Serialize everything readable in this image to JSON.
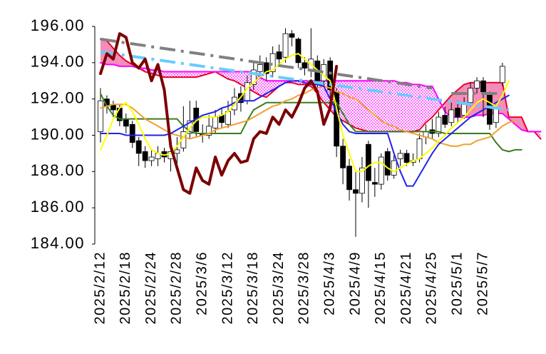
{
  "chart_data": {
    "type": "candlestick",
    "categories": [
      "2025/2/12",
      null,
      null,
      null,
      "2025/2/18",
      null,
      null,
      null,
      "2025/2/24",
      null,
      null,
      null,
      "2025/2/28",
      null,
      null,
      null,
      "2025/3/6",
      null,
      null,
      null,
      "2025/3/12",
      null,
      null,
      null,
      "2025/3/18",
      null,
      null,
      null,
      "2025/3/24",
      null,
      null,
      null,
      "2025/3/28",
      null,
      null,
      null,
      "2025/4/3",
      null,
      null,
      null,
      "2025/4/9",
      null,
      null,
      null,
      "2025/4/15",
      null,
      null,
      null,
      "2025/4/21",
      null,
      null,
      null,
      "2025/4/25",
      null,
      null,
      null,
      "2025/5/1",
      null,
      null,
      null,
      "2025/5/7",
      null,
      null,
      null,
      null,
      null,
      null,
      null,
      null,
      null
    ],
    "ylim": [
      184,
      196
    ],
    "yticks": [
      {
        "value": 184,
        "label": "184.00"
      },
      {
        "value": 186,
        "label": "186.00"
      },
      {
        "value": 188,
        "label": "188.00"
      },
      {
        "value": 190,
        "label": "190.00"
      },
      {
        "value": 192,
        "label": "192.00"
      },
      {
        "value": 194,
        "label": "194.00"
      },
      {
        "value": 196,
        "label": "196.00"
      }
    ],
    "grid": false,
    "candles": {
      "up_color": "#ffffff",
      "down_color": "#000000",
      "open": [
        190.2,
        192.0,
        191.7,
        191.5,
        190.9,
        190.6,
        189.7,
        189.1,
        188.6,
        188.7,
        189.1,
        188.7,
        189.0,
        189.3,
        190.1,
        191.5,
        190.1,
        190.0,
        190.4,
        191.1,
        190.6,
        191.4,
        192.3,
        191.9,
        192.8,
        193.5,
        194.0,
        193.5,
        194.6,
        194.3,
        195.6,
        195.3,
        194.0,
        193.6,
        194.1,
        193.0,
        194.1,
        192.4,
        189.4,
        188.3,
        187.0,
        186.8,
        189.5,
        187.4,
        187.3,
        189.1,
        187.8,
        188.7,
        189.0,
        188.5,
        188.7,
        189.9,
        190.3,
        190.1,
        191.1,
        190.7,
        191.5,
        191.1,
        191.8,
        192.6,
        193.0,
        192.3,
        190.7,
        192.9,
        null,
        null,
        null,
        null,
        null,
        null
      ],
      "high": [
        192.6,
        192.2,
        191.9,
        191.7,
        191.2,
        190.8,
        189.9,
        189.4,
        189.2,
        189.4,
        189.3,
        189.5,
        189.9,
        191.6,
        191.9,
        191.9,
        190.6,
        191.1,
        191.4,
        191.5,
        191.9,
        192.6,
        192.7,
        193.3,
        194.0,
        194.4,
        194.3,
        194.9,
        195.0,
        195.9,
        195.8,
        195.4,
        194.3,
        195.9,
        194.4,
        194.2,
        194.3,
        192.6,
        189.8,
        188.7,
        188.0,
        188.8,
        189.7,
        188.2,
        189.0,
        189.3,
        188.9,
        189.2,
        189.2,
        189.0,
        190.1,
        190.6,
        190.9,
        191.3,
        191.6,
        191.8,
        191.9,
        192.1,
        192.9,
        193.2,
        193.2,
        192.4,
        191.7,
        194.0,
        null,
        null,
        null,
        null,
        null,
        null
      ],
      "low": [
        189.6,
        191.2,
        191.0,
        190.5,
        190.1,
        189.3,
        188.3,
        188.2,
        188.3,
        188.3,
        188.5,
        188.0,
        188.2,
        189.1,
        189.8,
        189.9,
        189.6,
        189.8,
        190.1,
        190.4,
        190.4,
        191.1,
        191.3,
        191.7,
        192.5,
        193.1,
        193.0,
        193.2,
        193.8,
        194.0,
        194.9,
        193.7,
        193.3,
        193.2,
        192.6,
        192.7,
        191.9,
        188.8,
        187.3,
        186.4,
        184.4,
        186.3,
        186.0,
        186.6,
        187.0,
        187.5,
        187.6,
        188.3,
        188.3,
        188.3,
        188.5,
        189.5,
        189.8,
        189.9,
        190.4,
        190.5,
        190.7,
        190.9,
        191.6,
        192.3,
        191.0,
        190.3,
        190.4,
        192.7,
        null,
        null,
        null,
        null,
        null,
        null
      ],
      "close": [
        191.9,
        191.6,
        191.4,
        190.8,
        190.5,
        189.6,
        189.0,
        188.6,
        188.8,
        189.0,
        188.8,
        189.1,
        189.2,
        190.2,
        190.8,
        190.2,
        190.0,
        190.5,
        191.0,
        190.7,
        191.3,
        192.1,
        191.8,
        192.9,
        193.6,
        193.9,
        193.4,
        194.5,
        194.2,
        195.6,
        195.4,
        194.0,
        193.7,
        194.2,
        193.0,
        193.9,
        192.5,
        189.4,
        188.2,
        187.0,
        186.8,
        188.2,
        187.5,
        187.3,
        188.8,
        187.8,
        188.6,
        189.0,
        188.5,
        188.6,
        189.8,
        190.2,
        190.1,
        191.0,
        190.6,
        191.4,
        191.0,
        191.7,
        192.6,
        193.0,
        192.4,
        190.6,
        191.5,
        193.8,
        null,
        null,
        null,
        null,
        null,
        null
      ]
    },
    "cloud_colors": [
      "#f48cb8",
      "#ff00ff"
    ],
    "span_a": {
      "color": "#e8002a",
      "values": [
        195.3,
        195.2,
        194.8,
        194.4,
        194.1,
        193.9,
        193.7,
        193.5,
        193.4,
        193.3,
        193.2,
        193.2,
        193.2,
        193.2,
        193.2,
        193.2,
        193.3,
        193.4,
        193.5,
        193.3,
        193.1,
        193.0,
        192.8,
        192.6,
        192.4,
        192.2,
        192.1,
        192.4,
        192.7,
        192.9,
        192.9,
        192.8,
        192.8,
        192.7,
        192.3,
        191.8,
        191.4,
        191.0,
        190.8,
        190.6,
        190.4,
        190.3,
        190.2,
        190.2,
        190.2,
        190.2,
        190.2,
        190.2,
        190.2,
        190.2,
        190.3,
        190.7,
        191.0,
        191.4,
        191.8,
        192.2,
        192.5,
        192.8,
        192.9,
        192.9,
        192.9,
        192.9,
        192.9,
        192.9,
        191.0,
        191.0,
        191.0,
        190.2,
        190.2,
        189.8
      ]
    },
    "span_b": {
      "color": "#ff00ff",
      "values": [
        194.0,
        193.9,
        193.9,
        193.8,
        193.8,
        193.8,
        193.7,
        193.7,
        193.6,
        193.6,
        193.5,
        193.5,
        193.5,
        193.5,
        193.5,
        193.5,
        193.5,
        193.5,
        193.5,
        193.5,
        193.5,
        193.5,
        193.5,
        193.5,
        193.5,
        193.2,
        193.0,
        193.0,
        193.0,
        193.0,
        193.0,
        193.0,
        193.0,
        193.0,
        193.0,
        193.0,
        193.0,
        193.0,
        193.0,
        193.0,
        193.0,
        193.0,
        193.0,
        193.0,
        193.0,
        193.0,
        193.0,
        192.9,
        192.9,
        192.8,
        192.8,
        192.7,
        192.7,
        192.0,
        191.3,
        191.0,
        191.0,
        191.0,
        191.0,
        191.1,
        191.1,
        191.2,
        191.2,
        191.2,
        190.9,
        190.6,
        190.3,
        190.2,
        190.2,
        190.2
      ]
    },
    "lines": [
      {
        "color": "#3a7d1a",
        "dashed": false,
        "values": [
          192.3,
          191.6,
          191.1,
          190.9,
          190.9,
          190.9,
          190.9,
          190.9,
          190.9,
          190.9,
          190.9,
          190.9,
          190.9,
          190.5,
          190.2,
          190.1,
          190.1,
          190.1,
          190.1,
          190.1,
          190.1,
          190.1,
          190.1,
          190.8,
          191.4,
          191.6,
          191.8,
          191.8,
          191.8,
          191.8,
          191.8,
          191.8,
          191.8,
          191.8,
          191.8,
          191.8,
          191.8,
          191.8,
          191.2,
          190.6,
          190.2,
          190.2,
          190.2,
          190.2,
          190.2,
          190.2,
          190.2,
          190.2,
          190.2,
          190.2,
          190.2,
          190.2,
          190.2,
          190.2,
          190.1,
          190.1,
          190.1,
          190.1,
          190.1,
          190.1,
          190.1,
          190.1,
          189.6,
          189.2,
          189.1,
          189.2,
          189.2,
          null,
          null,
          null
        ]
      },
      {
        "color": "#f0a030",
        "dashed": false,
        "values": [
          191.5,
          191.6,
          191.7,
          191.7,
          191.7,
          191.5,
          191.2,
          190.9,
          190.7,
          190.5,
          190.3,
          190.1,
          190.0,
          189.9,
          189.8,
          189.9,
          190.0,
          190.1,
          190.3,
          190.4,
          190.5,
          190.6,
          190.7,
          190.8,
          191.0,
          191.2,
          191.4,
          191.6,
          191.7,
          191.9,
          192.0,
          192.2,
          192.3,
          192.5,
          192.6,
          192.7,
          192.6,
          192.4,
          192.3,
          192.1,
          192.0,
          191.7,
          191.4,
          191.1,
          190.8,
          190.6,
          190.5,
          190.3,
          190.2,
          190.1,
          190.0,
          189.9,
          189.8,
          189.6,
          189.5,
          189.4,
          189.4,
          189.5,
          189.5,
          189.7,
          189.8,
          189.9,
          190.2,
          190.5,
          190.7,
          190.8,
          null,
          null,
          null,
          null
        ]
      },
      {
        "color": "#2222ee",
        "dashed": false,
        "values": [
          190.1,
          190.1,
          190.1,
          190.1,
          190.0,
          190.0,
          190.0,
          190.0,
          190.0,
          190.0,
          190.0,
          190.1,
          190.3,
          190.5,
          190.7,
          190.9,
          191.1,
          191.2,
          191.3,
          191.5,
          191.6,
          191.8,
          191.9,
          191.9,
          191.9,
          192.1,
          192.3,
          192.5,
          192.7,
          192.9,
          193.0,
          193.0,
          192.9,
          192.8,
          192.8,
          192.7,
          192.0,
          191.3,
          190.6,
          190.2,
          190.1,
          190.1,
          190.1,
          190.1,
          190.1,
          190.1,
          189.0,
          188.0,
          187.2,
          187.2,
          187.8,
          188.4,
          189.0,
          189.5,
          189.8,
          190.1,
          190.4,
          190.7,
          191.0,
          191.2,
          191.4,
          191.6,
          191.8,
          192.0,
          192.2,
          null,
          null,
          null,
          null,
          null
        ]
      },
      {
        "color": "#ffff00",
        "dashed": false,
        "values": [
          189.2,
          190.0,
          190.9,
          191.5,
          191.8,
          191.3,
          190.6,
          189.8,
          189.2,
          189.0,
          188.9,
          189.0,
          189.4,
          189.9,
          190.4,
          190.8,
          191.0,
          191.0,
          191.0,
          191.1,
          191.3,
          191.7,
          192.1,
          192.6,
          192.9,
          193.2,
          193.5,
          193.6,
          193.9,
          194.2,
          194.4,
          194.5,
          194.2,
          193.9,
          193.6,
          193.3,
          193.0,
          191.5,
          190.0,
          189.0,
          188.0,
          188.0,
          188.3,
          188.5,
          188.5,
          188.2,
          188.0,
          188.2,
          188.4,
          188.6,
          188.7,
          189.0,
          189.3,
          189.7,
          190.0,
          190.4,
          190.7,
          191.0,
          191.4,
          191.8,
          192.0,
          191.8,
          191.6,
          192.2,
          193.0,
          null,
          null,
          null,
          null,
          null
        ]
      },
      {
        "color": "#808080",
        "dashed": true,
        "values": [
          195.3,
          195.25,
          195.2,
          195.14,
          195.09,
          195.04,
          194.99,
          194.94,
          194.88,
          194.83,
          194.78,
          194.73,
          194.68,
          194.62,
          194.57,
          194.52,
          194.47,
          194.42,
          194.36,
          194.31,
          194.26,
          194.21,
          194.16,
          194.1,
          194.05,
          194.0,
          193.95,
          193.9,
          193.84,
          193.79,
          193.74,
          193.69,
          193.64,
          193.58,
          193.53,
          193.48,
          193.43,
          193.38,
          193.32,
          193.27,
          193.22,
          193.17,
          193.12,
          193.06,
          193.01,
          192.96,
          192.91,
          192.86,
          192.8,
          192.75,
          192.7,
          192.65,
          192.6,
          null,
          null,
          192.3,
          192.3,
          192.3,
          192.3,
          192.3,
          192.3,
          192.3,
          192.3,
          192.3,
          null,
          null,
          null,
          null,
          null,
          null
        ]
      },
      {
        "color": "#66ccff",
        "dashed": true,
        "values": [
          194.6,
          194.55,
          194.5,
          194.45,
          194.4,
          194.35,
          194.3,
          194.25,
          194.2,
          194.15,
          194.1,
          194.05,
          194.0,
          193.95,
          193.9,
          193.85,
          193.8,
          193.75,
          193.7,
          193.65,
          193.6,
          193.55,
          193.5,
          193.45,
          193.4,
          193.35,
          193.3,
          193.25,
          193.2,
          193.15,
          193.1,
          193.05,
          193.0,
          192.95,
          192.9,
          192.85,
          192.8,
          192.75,
          192.7,
          192.65,
          192.6,
          192.55,
          192.5,
          192.45,
          192.4,
          192.35,
          192.3,
          192.25,
          192.2,
          192.15,
          192.1,
          192.05,
          192.0,
          191.95,
          191.9,
          191.85,
          191.8,
          191.75,
          191.7,
          191.65,
          191.6,
          191.55,
          191.5,
          191.45,
          191.4,
          null,
          null,
          null,
          null,
          null
        ]
      },
      {
        "color": "#7b0000",
        "dashed": false,
        "values": [
          193.4,
          194.5,
          194.2,
          195.6,
          195.4,
          194.0,
          193.7,
          194.2,
          193.0,
          193.9,
          192.5,
          189.4,
          188.2,
          187.0,
          186.8,
          188.2,
          187.5,
          187.3,
          188.8,
          187.8,
          188.6,
          189.0,
          188.5,
          188.6,
          189.8,
          190.2,
          190.1,
          191.0,
          190.6,
          191.4,
          191.0,
          191.7,
          192.6,
          193.0,
          192.4,
          190.6,
          191.5,
          193.8,
          null,
          null,
          null,
          null,
          null,
          null,
          null,
          null,
          null,
          null,
          null,
          null,
          null,
          null,
          null,
          null,
          null,
          null,
          null,
          null,
          null,
          null,
          null,
          null,
          null,
          null,
          null,
          null,
          null,
          null,
          null,
          null
        ]
      }
    ]
  }
}
